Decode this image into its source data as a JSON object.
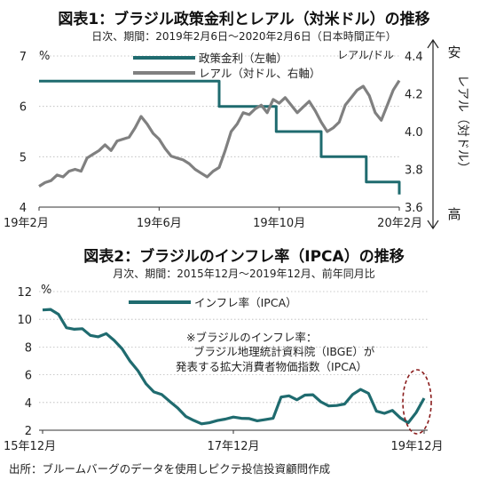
{
  "chart_data": [
    {
      "type": "line",
      "title": "図表1：ブラジル政策金利とレアル（対米ドル）の推移",
      "subtitle": "日次、期間：2019年2月6日～2020年2月6日（日本時間正午）",
      "left_unit": "%",
      "right_unit": "レアル/ドル",
      "right_axis_label": "レアル（対ドル）",
      "right_top_label": "安",
      "right_bottom_label": "高",
      "right_axis_inverted": true,
      "x_ticks": [
        "19年2月",
        "19年6月",
        "19年10月",
        "20年2月"
      ],
      "y_left_ticks": [
        "4",
        "5",
        "6",
        "7"
      ],
      "y_right_ticks": [
        "3.6",
        "3.8",
        "4.0",
        "4.2",
        "4.4"
      ],
      "ylim_left": [
        4,
        7
      ],
      "ylim_right": [
        3.6,
        4.4
      ],
      "grid": true,
      "legend_position": "top-center",
      "series": [
        {
          "name": "政策金利（左軸）",
          "axis": "left",
          "color": "#1f6b6f",
          "points": [
            [
              0,
              6.5
            ],
            [
              6.0,
              6.5
            ],
            [
              6.0,
              6.0
            ],
            [
              7.9,
              6.0
            ],
            [
              7.9,
              5.5
            ],
            [
              9.4,
              5.5
            ],
            [
              9.4,
              5.0
            ],
            [
              10.9,
              5.0
            ],
            [
              10.9,
              4.5
            ],
            [
              12.0,
              4.5
            ],
            [
              12.0,
              4.25
            ]
          ]
        },
        {
          "name": "レアル（対ドル、右軸）",
          "axis": "right",
          "color": "#808080",
          "points": [
            [
              0,
              3.71
            ],
            [
              0.2,
              3.73
            ],
            [
              0.4,
              3.74
            ],
            [
              0.6,
              3.77
            ],
            [
              0.8,
              3.76
            ],
            [
              1.0,
              3.79
            ],
            [
              1.2,
              3.8
            ],
            [
              1.4,
              3.79
            ],
            [
              1.6,
              3.86
            ],
            [
              1.8,
              3.88
            ],
            [
              2.0,
              3.9
            ],
            [
              2.2,
              3.93
            ],
            [
              2.4,
              3.9
            ],
            [
              2.6,
              3.95
            ],
            [
              2.8,
              3.96
            ],
            [
              3.0,
              3.97
            ],
            [
              3.2,
              4.02
            ],
            [
              3.4,
              4.08
            ],
            [
              3.6,
              4.04
            ],
            [
              3.8,
              3.99
            ],
            [
              4.0,
              3.96
            ],
            [
              4.2,
              3.91
            ],
            [
              4.4,
              3.87
            ],
            [
              4.6,
              3.86
            ],
            [
              4.8,
              3.85
            ],
            [
              5.0,
              3.83
            ],
            [
              5.2,
              3.8
            ],
            [
              5.4,
              3.78
            ],
            [
              5.6,
              3.76
            ],
            [
              5.8,
              3.79
            ],
            [
              6.0,
              3.81
            ],
            [
              6.2,
              3.9
            ],
            [
              6.4,
              4.0
            ],
            [
              6.6,
              4.04
            ],
            [
              6.8,
              4.1
            ],
            [
              7.0,
              4.09
            ],
            [
              7.2,
              4.12
            ],
            [
              7.4,
              4.14
            ],
            [
              7.6,
              4.1
            ],
            [
              7.8,
              4.17
            ],
            [
              8.0,
              4.15
            ],
            [
              8.2,
              4.18
            ],
            [
              8.4,
              4.14
            ],
            [
              8.6,
              4.1
            ],
            [
              8.8,
              4.13
            ],
            [
              9.0,
              4.16
            ],
            [
              9.2,
              4.11
            ],
            [
              9.4,
              4.05
            ],
            [
              9.6,
              4.0
            ],
            [
              9.8,
              4.02
            ],
            [
              10.0,
              4.05
            ],
            [
              10.2,
              4.14
            ],
            [
              10.4,
              4.18
            ],
            [
              10.6,
              4.22
            ],
            [
              10.8,
              4.24
            ],
            [
              11.0,
              4.19
            ],
            [
              11.2,
              4.1
            ],
            [
              11.4,
              4.06
            ],
            [
              11.6,
              4.14
            ],
            [
              11.8,
              4.22
            ],
            [
              12.0,
              4.27
            ]
          ]
        }
      ]
    },
    {
      "type": "line",
      "title": "図表2：ブラジルのインフレ率（IPCA）の推移",
      "subtitle": "月次、期間：2015年12月～2019年12月、前年同月比",
      "y_unit": "%",
      "x_ticks": [
        "15年12月",
        "17年12月",
        "19年12月"
      ],
      "y_ticks": [
        "2",
        "4",
        "6",
        "8",
        "10",
        "12"
      ],
      "ylim": [
        2,
        12
      ],
      "grid": true,
      "legend_position": "top-center",
      "annotation": [
        "※ブラジルのインフレ率：",
        "ブラジル地理統計資料院（IBGE）が",
        "発表する拡大消費者物価指数（IPCA）"
      ],
      "series": [
        {
          "name": "インフレ率（IPCA）",
          "color": "#1f6b6f",
          "values": [
            10.67,
            10.71,
            10.36,
            9.39,
            9.28,
            9.32,
            8.84,
            8.74,
            8.97,
            8.48,
            7.87,
            6.99,
            6.29,
            5.35,
            4.76,
            4.57,
            4.08,
            3.6,
            3.0,
            2.71,
            2.46,
            2.54,
            2.7,
            2.8,
            2.95,
            2.86,
            2.84,
            2.68,
            2.76,
            2.86,
            4.39,
            4.48,
            4.19,
            4.53,
            4.56,
            4.05,
            3.75,
            3.78,
            3.89,
            4.58,
            4.94,
            4.66,
            3.37,
            3.22,
            3.43,
            2.89,
            2.54,
            3.27,
            4.31
          ]
        }
      ]
    }
  ],
  "source": "出所：ブルームバーグのデータを使用しピクテ投信投資顧問作成"
}
